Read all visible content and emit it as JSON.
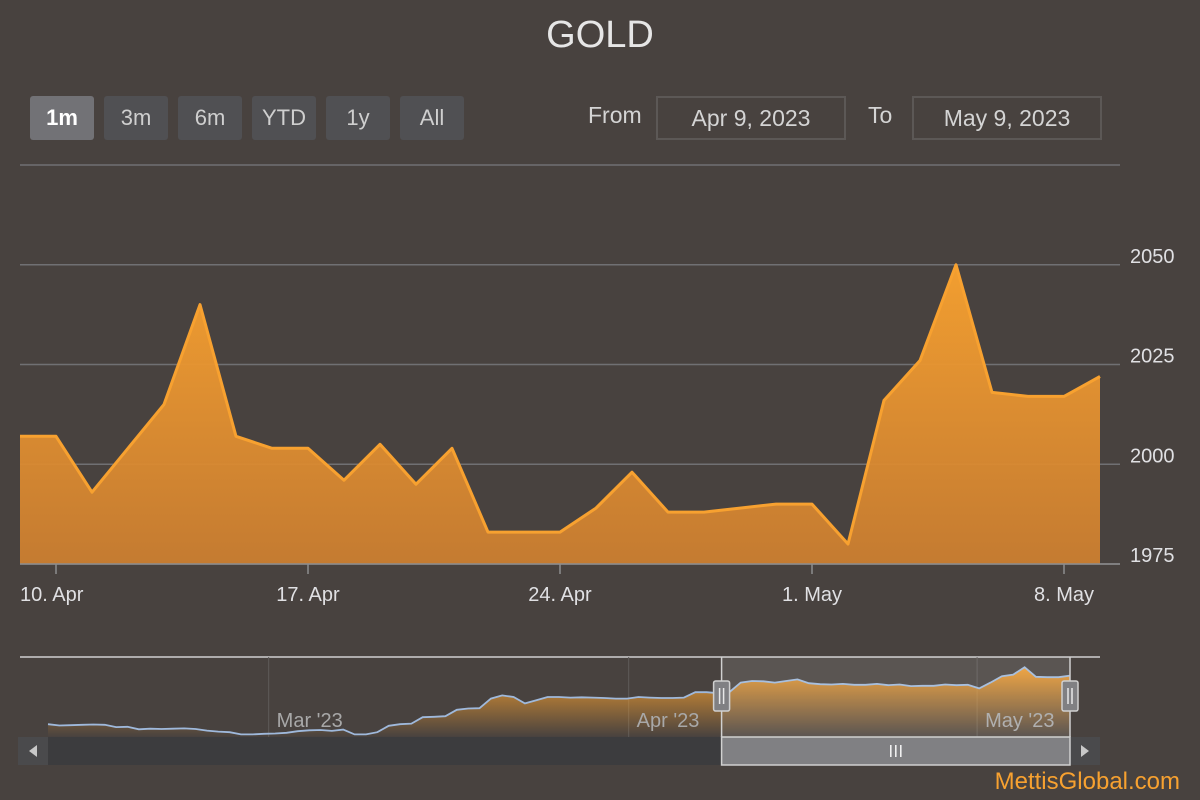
{
  "chart_data": {
    "type": "area",
    "title": "GOLD",
    "series": [
      {
        "name": "",
        "color": "#f7a130",
        "dates": [
          "2023-04-09",
          "2023-04-10",
          "2023-04-11",
          "2023-04-12",
          "2023-04-13",
          "2023-04-14",
          "2023-04-15",
          "2023-04-16",
          "2023-04-17",
          "2023-04-18",
          "2023-04-19",
          "2023-04-20",
          "2023-04-21",
          "2023-04-22",
          "2023-04-23",
          "2023-04-24",
          "2023-04-25",
          "2023-04-26",
          "2023-04-27",
          "2023-04-28",
          "2023-04-29",
          "2023-04-30",
          "2023-05-01",
          "2023-05-02",
          "2023-05-03",
          "2023-05-04",
          "2023-05-05",
          "2023-05-06",
          "2023-05-07",
          "2023-05-08",
          "2023-05-09"
        ],
        "values": [
          2007,
          2007,
          1993,
          2004,
          2015,
          2040,
          2007,
          2004,
          2004,
          1996,
          2005,
          1995,
          2004,
          1983,
          1983,
          1983,
          1989,
          1998,
          1988,
          1988,
          1989,
          1990,
          1990,
          1980,
          2016,
          2026,
          2050,
          2018,
          2017,
          2017,
          2022
        ]
      }
    ],
    "y_axis": {
      "ticks": [
        1975,
        2000,
        2025,
        2050
      ],
      "min": 1975,
      "max": 2075,
      "grid": true,
      "position": "right"
    },
    "x_axis": {
      "ticks": [
        {
          "date": "2023-04-10",
          "label": "10. Apr"
        },
        {
          "date": "2023-04-17",
          "label": "17. Apr"
        },
        {
          "date": "2023-04-24",
          "label": "24. Apr"
        },
        {
          "date": "2023-05-01",
          "label": "1. May"
        },
        {
          "date": "2023-05-08",
          "label": "8. May"
        }
      ]
    },
    "navigator": {
      "start": "2023-02-10",
      "end": "2023-05-09",
      "values": [
        1870,
        1866,
        1867,
        1868,
        1869,
        1868,
        1861,
        1862,
        1854,
        1856,
        1855,
        1856,
        1857,
        1855,
        1850,
        1847,
        1845,
        1838,
        1838,
        1840,
        1841,
        1843,
        1848,
        1851,
        1852,
        1849,
        1853,
        1838,
        1838,
        1845,
        1865,
        1870,
        1872,
        1892,
        1893,
        1895,
        1915,
        1919,
        1920,
        1950,
        1960,
        1955,
        1935,
        1945,
        1955,
        1955,
        1953,
        1954,
        1953,
        1952,
        1950,
        1950,
        1955,
        1953,
        1952,
        1952,
        1953,
        1970,
        1970,
        1967,
        1970,
        2000,
        2005,
        2004,
        2000,
        2005,
        2010,
        1998,
        1995,
        1994,
        1996,
        1993,
        1993,
        1996,
        1992,
        1994,
        1989,
        1990,
        1990,
        1994,
        1992,
        1993,
        1982,
        2000,
        2020,
        2025,
        2048,
        2018,
        2017,
        2017,
        2022
      ],
      "labels": [
        {
          "date": "2023-03-01",
          "label": "Mar '23"
        },
        {
          "date": "2023-04-01",
          "label": "Apr '23"
        },
        {
          "date": "2023-05-01",
          "label": "May '23"
        }
      ],
      "selected_start": "2023-04-09",
      "selected_end": "2023-05-09"
    }
  },
  "range_selector": {
    "buttons": [
      {
        "label": "1m",
        "active": true
      },
      {
        "label": "3m",
        "active": false
      },
      {
        "label": "6m",
        "active": false
      },
      {
        "label": "YTD",
        "active": false
      },
      {
        "label": "1y",
        "active": false
      },
      {
        "label": "All",
        "active": false
      }
    ],
    "from_label": "From",
    "from_value": "Apr 9, 2023",
    "to_label": "To",
    "to_value": "May 9, 2023"
  },
  "credit": "MettisGlobal.com"
}
